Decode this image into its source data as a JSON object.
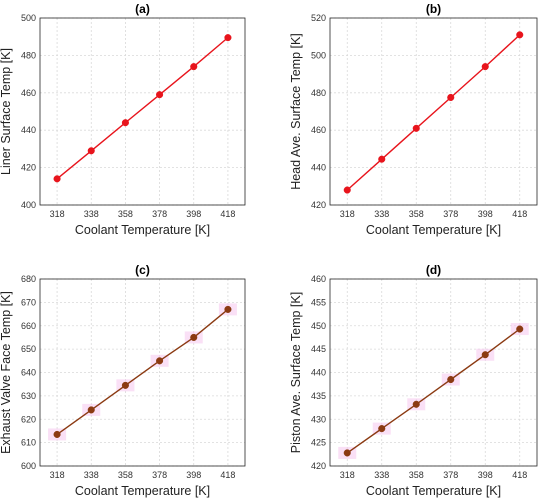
{
  "chart_data": [
    {
      "type": "line",
      "title": "(a)",
      "xlabel": "Coolant Temperature [K]",
      "ylabel": "Liner Surface Temp [K]",
      "categories": [
        318,
        338,
        358,
        378,
        398,
        418
      ],
      "xlim": [
        308,
        428
      ],
      "ylim": [
        400,
        500
      ],
      "yticks": [
        400,
        420,
        440,
        460,
        480,
        500
      ],
      "grid": true,
      "series": [
        {
          "values": [
            414,
            429,
            444,
            459,
            474,
            489.5
          ],
          "color": "#e8141c"
        }
      ]
    },
    {
      "type": "line",
      "title": "(b)",
      "xlabel": "Coolant Temperature [K]",
      "ylabel": "Head Ave. Surface Temp [K]",
      "categories": [
        318,
        338,
        358,
        378,
        398,
        418
      ],
      "xlim": [
        308,
        428
      ],
      "ylim": [
        420,
        520
      ],
      "yticks": [
        420,
        440,
        460,
        480,
        500,
        520
      ],
      "grid": true,
      "series": [
        {
          "values": [
            428,
            444.5,
            461,
            477.5,
            494,
            511
          ],
          "color": "#e8141c"
        }
      ]
    },
    {
      "type": "line",
      "title": "(c)",
      "xlabel": "Coolant Temperature [K]",
      "ylabel": "Exhaust Valve Face Temp [K]",
      "categories": [
        318,
        338,
        358,
        378,
        398,
        418
      ],
      "xlim": [
        308,
        428
      ],
      "ylim": [
        600,
        680
      ],
      "yticks": [
        600,
        610,
        620,
        630,
        640,
        650,
        660,
        670,
        680
      ],
      "grid": true,
      "series": [
        {
          "values": [
            613.5,
            624,
            634.5,
            645,
            655,
            667
          ],
          "color": "#8b3a12"
        }
      ],
      "highlight_color": "#f5c6ef"
    },
    {
      "type": "line",
      "title": "(d)",
      "xlabel": "Coolant Temperature [K]",
      "ylabel": "Piston Ave. Surface Temp [K]",
      "categories": [
        318,
        338,
        358,
        378,
        398,
        418
      ],
      "xlim": [
        308,
        428
      ],
      "ylim": [
        420,
        460
      ],
      "yticks": [
        420,
        425,
        430,
        435,
        440,
        445,
        450,
        455,
        460
      ],
      "grid": true,
      "series": [
        {
          "values": [
            422.8,
            428,
            433.2,
            438.5,
            443.8,
            449.3
          ],
          "color": "#8b3a12"
        }
      ],
      "highlight_color": "#f5c6ef"
    }
  ]
}
